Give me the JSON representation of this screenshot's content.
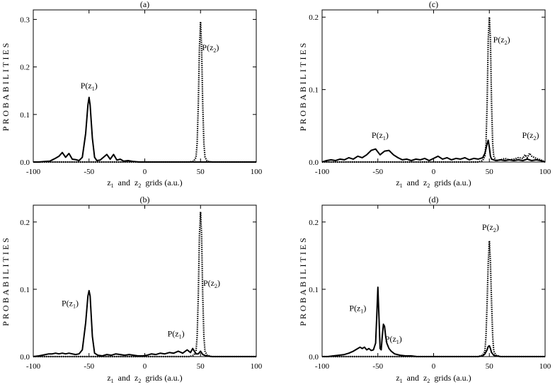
{
  "colors": {
    "background": "#ffffff",
    "ink": "#000000"
  },
  "chart_data": [
    {
      "type": "line",
      "label": "(a)",
      "xlabel_parts": [
        "z",
        "1",
        "and",
        "z",
        "2",
        "grids (a.u.)"
      ],
      "ylabel": "PROBABILITIES",
      "xlim": [
        -100,
        100
      ],
      "ylim": [
        0,
        0.32
      ],
      "xticks": [
        -100,
        -50,
        0,
        50,
        100
      ],
      "xtick_labels": [
        "-100",
        "-50",
        "0",
        "50",
        "100"
      ],
      "yticks": [
        0,
        0.1,
        0.2,
        0.3
      ],
      "ytick_labels": [
        "0.0",
        "0.1",
        "0.2",
        "0.3"
      ],
      "series": [
        {
          "name": "P(z1)",
          "style": "solid",
          "x": [
            -100,
            -95,
            -90,
            -85,
            -80,
            -77,
            -74,
            -71,
            -68,
            -65,
            -62,
            -59,
            -56,
            -53,
            -51,
            -50,
            -49,
            -47,
            -45,
            -43,
            -40,
            -37,
            -34,
            -31,
            -28,
            -25,
            -22,
            -19,
            -15,
            -10,
            -5,
            0,
            10,
            20,
            30,
            40,
            50,
            60,
            70,
            80,
            90,
            100
          ],
          "y": [
            0,
            0,
            0.001,
            0.002,
            0.008,
            0.012,
            0.02,
            0.01,
            0.018,
            0.006,
            0.005,
            0.003,
            0.01,
            0.06,
            0.12,
            0.136,
            0.12,
            0.05,
            0.01,
            0.003,
            0.004,
            0.01,
            0.016,
            0.006,
            0.016,
            0.004,
            0.006,
            0.002,
            0.003,
            0.001,
            0,
            0,
            0,
            0,
            0,
            0,
            0,
            0,
            0,
            0,
            0,
            0
          ]
        },
        {
          "name": "P(z2)",
          "style": "dotted",
          "x": [
            -100,
            40,
            44,
            46,
            47,
            48,
            49,
            50,
            51,
            52,
            53,
            54,
            56,
            60,
            100
          ],
          "y": [
            0,
            0,
            0.002,
            0.01,
            0.04,
            0.12,
            0.24,
            0.295,
            0.24,
            0.12,
            0.04,
            0.01,
            0.002,
            0,
            0
          ]
        }
      ],
      "annotations": [
        {
          "base": "P(z",
          "sub": "1",
          "close": ")",
          "x": -50,
          "y": 0.155
        },
        {
          "base": "P(z",
          "sub": "2",
          "close": ")",
          "x": 59,
          "y": 0.235
        }
      ]
    },
    {
      "type": "line",
      "label": "(b)",
      "xlabel_parts": [
        "z",
        "1",
        "and",
        "z",
        "2",
        "grids (a.u.)"
      ],
      "ylabel": "PROBABILITIES",
      "xlim": [
        -100,
        100
      ],
      "ylim": [
        0,
        0.225
      ],
      "xticks": [
        -100,
        -50,
        0,
        50,
        100
      ],
      "xtick_labels": [
        "-100",
        "-50",
        "0",
        "50",
        "100"
      ],
      "yticks": [
        0,
        0.1,
        0.2
      ],
      "ytick_labels": [
        "0.0",
        "0.1",
        "0.2"
      ],
      "series": [
        {
          "name": "P(z1)",
          "style": "solid",
          "x": [
            -100,
            -95,
            -92,
            -89,
            -86,
            -83,
            -80,
            -77,
            -74,
            -71,
            -68,
            -65,
            -62,
            -59,
            -56,
            -53,
            -51,
            -50,
            -49,
            -47,
            -45,
            -42,
            -38,
            -34,
            -30,
            -26,
            -22,
            -18,
            -14,
            -10,
            -6,
            -2,
            2,
            6,
            10,
            14,
            18,
            22,
            26,
            30,
            34,
            38,
            41,
            43,
            46,
            48,
            50,
            52,
            55,
            60,
            100
          ],
          "y": [
            0,
            0.001,
            0.002,
            0.003,
            0.004,
            0.004,
            0.005,
            0.004,
            0.005,
            0.004,
            0.005,
            0.004,
            0.003,
            0.004,
            0.01,
            0.05,
            0.09,
            0.098,
            0.09,
            0.03,
            0.005,
            0.002,
            0.001,
            0.003,
            0.002,
            0.004,
            0.003,
            0.002,
            0.003,
            0.002,
            0.001,
            0.001,
            0.002,
            0.004,
            0.003,
            0.005,
            0.004,
            0.006,
            0.005,
            0.008,
            0.005,
            0.01,
            0.006,
            0.012,
            0.004,
            0.004,
            0.008,
            0.003,
            0.001,
            0,
            0
          ]
        },
        {
          "name": "P(z2)",
          "style": "dotted",
          "x": [
            -100,
            40,
            44,
            46,
            47,
            48,
            49,
            50,
            51,
            52,
            53,
            54,
            56,
            60,
            100
          ],
          "y": [
            0,
            0,
            0.002,
            0.008,
            0.03,
            0.09,
            0.18,
            0.215,
            0.18,
            0.09,
            0.03,
            0.008,
            0.002,
            0,
            0
          ]
        }
      ],
      "annotations": [
        {
          "base": "P(z",
          "sub": "1",
          "close": ")",
          "x": -67,
          "y": 0.075
        },
        {
          "base": "P(z",
          "sub": "1",
          "close": ")",
          "x": 28,
          "y": 0.03
        },
        {
          "base": "P(z",
          "sub": "2",
          "close": ")",
          "x": 60,
          "y": 0.105
        }
      ]
    },
    {
      "type": "line",
      "label": "(c)",
      "xlabel_parts": [
        "z",
        "1",
        "and",
        "z",
        "2",
        "grids (a.u.)"
      ],
      "ylabel": "PROBABILITIES",
      "xlim": [
        -100,
        100
      ],
      "ylim": [
        0,
        0.21
      ],
      "xticks": [
        -100,
        -50,
        0,
        50,
        100
      ],
      "xtick_labels": [
        "-100",
        "-50",
        "0",
        "50",
        "100"
      ],
      "yticks": [
        0,
        0.1,
        0.2
      ],
      "ytick_labels": [
        "0.0",
        "0.1",
        "0.2"
      ],
      "series": [
        {
          "name": "P(z1)",
          "style": "solid",
          "x": [
            -100,
            -96,
            -92,
            -88,
            -84,
            -80,
            -76,
            -72,
            -68,
            -64,
            -60,
            -56,
            -52,
            -48,
            -44,
            -40,
            -36,
            -32,
            -28,
            -24,
            -20,
            -16,
            -12,
            -8,
            -4,
            0,
            4,
            8,
            12,
            16,
            20,
            24,
            28,
            32,
            36,
            40,
            44,
            46,
            48,
            49,
            50,
            51,
            52,
            54,
            56,
            60,
            64,
            68,
            72,
            76,
            80,
            84,
            88,
            92,
            96,
            100
          ],
          "y": [
            0,
            0.002,
            0.003,
            0.002,
            0.004,
            0.003,
            0.006,
            0.004,
            0.008,
            0.006,
            0.01,
            0.016,
            0.018,
            0.01,
            0.015,
            0.016,
            0.01,
            0.006,
            0.003,
            0.004,
            0.002,
            0.004,
            0.003,
            0.005,
            0.002,
            0.005,
            0.008,
            0.004,
            0.006,
            0.003,
            0.005,
            0.004,
            0.006,
            0.003,
            0.005,
            0.004,
            0.006,
            0.012,
            0.025,
            0.03,
            0.02,
            0.008,
            0.004,
            0.003,
            0.002,
            0.003,
            0.002,
            0.003,
            0.002,
            0.003,
            0.002,
            0.004,
            0.002,
            0.003,
            0.002,
            0
          ]
        },
        {
          "name": "P(z2)",
          "style": "dotted",
          "x": [
            -100,
            40,
            44,
            46,
            47,
            48,
            49,
            50,
            51,
            52,
            53,
            54,
            56,
            60,
            64,
            68,
            72,
            76,
            80,
            82,
            84,
            86,
            88,
            92,
            96,
            100
          ],
          "y": [
            0,
            0,
            0.002,
            0.008,
            0.025,
            0.08,
            0.17,
            0.2,
            0.17,
            0.08,
            0.025,
            0.008,
            0.002,
            0.003,
            0.005,
            0.003,
            0.004,
            0.006,
            0.005,
            0.01,
            0.006,
            0.012,
            0.008,
            0.005,
            0.003,
            0
          ]
        }
      ],
      "annotations": [
        {
          "base": "P(z",
          "sub": "1",
          "close": ")",
          "x": -48,
          "y": 0.033
        },
        {
          "base": "P(z",
          "sub": "2",
          "close": ")",
          "x": 61,
          "y": 0.165
        },
        {
          "base": "P(z",
          "sub": "2",
          "close": ")",
          "x": 87,
          "y": 0.033
        }
      ]
    },
    {
      "type": "line",
      "label": "(d)",
      "xlabel_parts": [
        "z",
        "1",
        "and",
        "z",
        "2",
        "grids (a.u.)"
      ],
      "ylabel": "PROBABILITIES",
      "xlim": [
        -100,
        100
      ],
      "ylim": [
        0,
        0.225
      ],
      "xticks": [
        -100,
        -50,
        0,
        50,
        100
      ],
      "xtick_labels": [
        "-100",
        "-50",
        "0",
        "50",
        "100"
      ],
      "yticks": [
        0,
        0.1,
        0.2
      ],
      "ytick_labels": [
        "0.0",
        "0.1",
        "0.2"
      ],
      "series": [
        {
          "name": "P(z1)",
          "style": "solid",
          "x": [
            -100,
            -95,
            -90,
            -85,
            -80,
            -76,
            -72,
            -68,
            -66,
            -64,
            -62,
            -60,
            -58,
            -56,
            -54,
            -52,
            -51,
            -50,
            -49,
            -48,
            -47,
            -46,
            -45,
            -44,
            -43,
            -42,
            -40,
            -38,
            -35,
            -30,
            -25,
            -20,
            -15,
            -10,
            -5,
            0,
            10,
            20,
            30,
            40,
            44,
            46,
            48,
            49,
            50,
            51,
            52,
            54,
            56,
            60,
            100
          ],
          "y": [
            0,
            0,
            0.001,
            0.002,
            0.003,
            0.005,
            0.008,
            0.012,
            0.014,
            0.012,
            0.014,
            0.01,
            0.012,
            0.009,
            0.01,
            0.02,
            0.06,
            0.103,
            0.06,
            0.012,
            0.01,
            0.03,
            0.048,
            0.045,
            0.03,
            0.02,
            0.012,
            0.008,
            0.004,
            0.002,
            0.001,
            0.001,
            0,
            0,
            0,
            0,
            0,
            0,
            0,
            0,
            0.001,
            0.004,
            0.01,
            0.015,
            0.016,
            0.012,
            0.006,
            0.002,
            0.001,
            0,
            0
          ]
        },
        {
          "name": "P(z2)",
          "style": "dotted",
          "x": [
            -100,
            40,
            44,
            46,
            47,
            48,
            49,
            50,
            51,
            52,
            53,
            54,
            56,
            60,
            100
          ],
          "y": [
            0,
            0,
            0.002,
            0.008,
            0.03,
            0.08,
            0.14,
            0.172,
            0.14,
            0.08,
            0.03,
            0.008,
            0.002,
            0,
            0
          ]
        }
      ],
      "annotations": [
        {
          "base": "P(z",
          "sub": "1",
          "close": ")",
          "x": -68,
          "y": 0.068
        },
        {
          "base": "P(z",
          "sub": "1",
          "close": ")",
          "x": -36,
          "y": 0.022
        },
        {
          "base": "P(z",
          "sub": "2",
          "close": ")",
          "x": 51,
          "y": 0.188
        }
      ]
    }
  ]
}
